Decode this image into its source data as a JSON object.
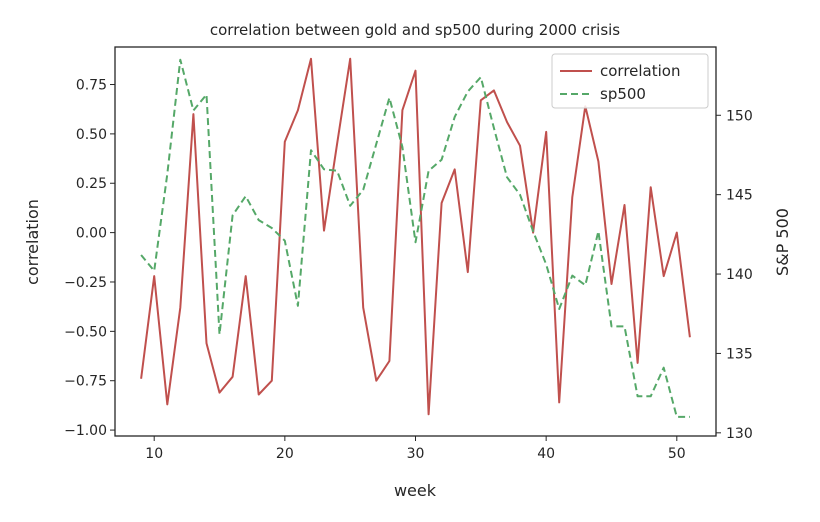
{
  "chart_data": {
    "type": "line",
    "title": "correlation between gold and sp500 during 2000 crisis",
    "xlabel": "week",
    "ylabel": "correlation",
    "y2label": "S&P 500",
    "xlim": [
      7,
      53
    ],
    "ylim": [
      -1.03,
      0.94
    ],
    "y2lim": [
      129.8,
      154.3
    ],
    "xticks": [
      10,
      20,
      30,
      40,
      50
    ],
    "yticks": [
      0.75,
      0.5,
      0.25,
      0.0,
      -0.25,
      -0.5,
      -0.75,
      -1.0
    ],
    "ytick_labels": [
      "0.75",
      "0.50",
      "0.25",
      "0.00",
      "−0.25",
      "−0.50",
      "−0.75",
      "−1.00"
    ],
    "y2ticks": [
      150,
      145,
      140,
      135,
      130
    ],
    "legend": {
      "placement": "top-right",
      "entries": [
        "correlation",
        "sp500"
      ]
    },
    "x": [
      9,
      10,
      11,
      12,
      13,
      14,
      15,
      16,
      17,
      18,
      19,
      20,
      21,
      22,
      23,
      24,
      25,
      26,
      27,
      28,
      29,
      30,
      31,
      32,
      33,
      34,
      35,
      36,
      37,
      38,
      39,
      40,
      41,
      42,
      43,
      44,
      45,
      46,
      47,
      48,
      49,
      50,
      51
    ],
    "series": [
      {
        "name": "correlation",
        "axis": "left",
        "color": "#c0504d",
        "style": "solid",
        "values": [
          -0.74,
          -0.22,
          -0.87,
          -0.38,
          0.6,
          -0.56,
          -0.81,
          -0.73,
          -0.22,
          -0.82,
          -0.75,
          0.46,
          0.62,
          0.88,
          0.01,
          0.45,
          0.88,
          -0.38,
          -0.75,
          -0.65,
          0.62,
          0.82,
          -0.92,
          0.15,
          0.32,
          -0.2,
          0.67,
          0.72,
          0.56,
          0.44,
          0.0,
          0.51,
          -0.86,
          0.18,
          0.64,
          0.36,
          -0.26,
          0.14,
          -0.66,
          0.23,
          -0.22,
          0.0,
          -0.53
        ]
      },
      {
        "name": "sp500",
        "axis": "right",
        "color": "#55a868",
        "style": "dashed",
        "values": [
          141.2,
          140.2,
          146.3,
          153.5,
          150.3,
          151.3,
          136.2,
          143.7,
          144.9,
          143.4,
          142.9,
          142.1,
          138.0,
          147.8,
          146.6,
          146.5,
          144.3,
          145.3,
          148.2,
          151.1,
          148.0,
          142.0,
          146.5,
          147.2,
          149.9,
          151.5,
          152.4,
          149.2,
          146.1,
          145.0,
          142.7,
          140.6,
          137.8,
          139.9,
          139.3,
          142.7,
          136.7,
          136.7,
          132.3,
          132.3,
          134.1,
          131.0,
          131.0
        ]
      }
    ]
  }
}
